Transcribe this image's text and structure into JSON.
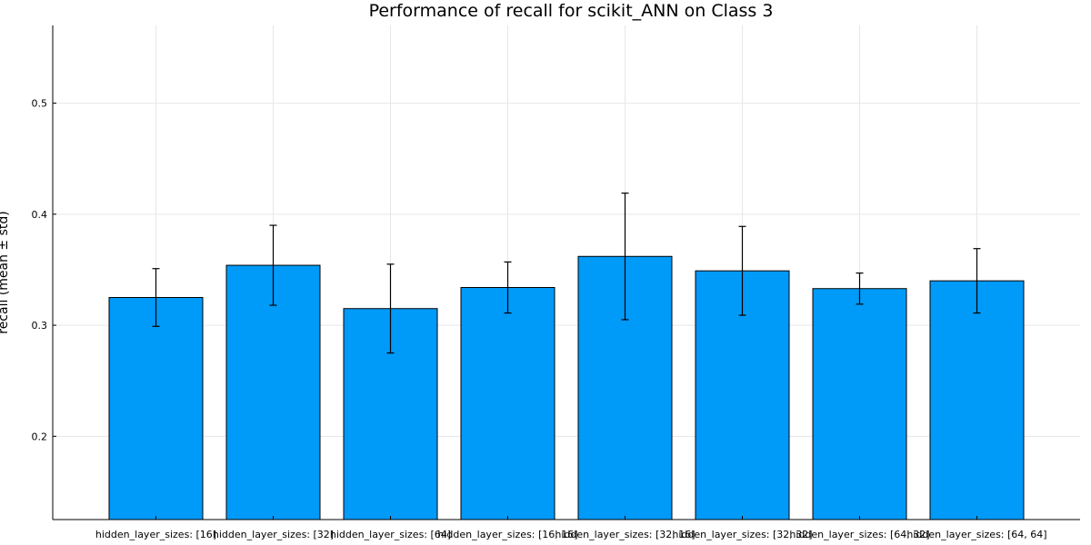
{
  "chart_data": {
    "type": "bar",
    "title": "Performance of recall for scikit_ANN on Class 3",
    "xlabel": "",
    "ylabel": "recall (mean ± std)",
    "categories": [
      "hidden_layer_sizes: [16]",
      "hidden_layer_sizes: [32]",
      "hidden_layer_sizes: [64]",
      "hidden_layer_sizes: [16, 16]",
      "hidden_layer_sizes: [32, 16]",
      "hidden_layer_sizes: [32, 32]",
      "hidden_layer_sizes: [64, 32]",
      "hidden_layer_sizes: [64, 64]"
    ],
    "values": [
      0.325,
      0.354,
      0.315,
      0.334,
      0.362,
      0.349,
      0.333,
      0.34
    ],
    "errors": [
      0.026,
      0.036,
      0.04,
      0.023,
      0.057,
      0.04,
      0.014,
      0.029
    ],
    "ylim": [
      0.125,
      0.57
    ],
    "yticks": [
      0.2,
      0.3,
      0.4,
      0.5
    ],
    "ytick_labels": [
      "0.2",
      "0.3",
      "0.4",
      "0.5"
    ],
    "grid": true,
    "bar_color": "#009af9"
  }
}
